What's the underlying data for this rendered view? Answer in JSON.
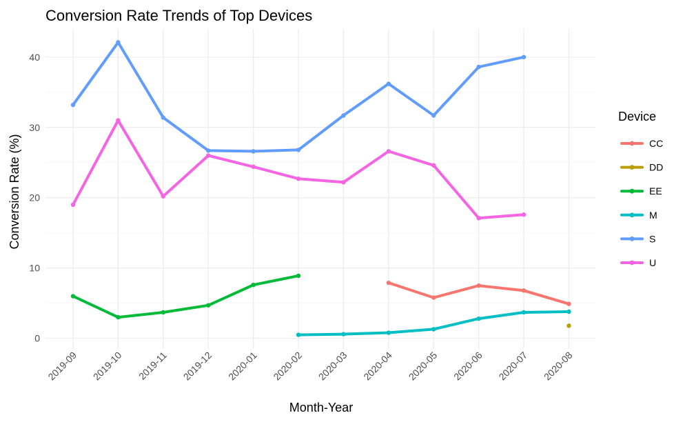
{
  "chart_data": {
    "type": "line",
    "title": "Conversion Rate Trends of Top Devices",
    "xlabel": "Month-Year",
    "ylabel": "Conversion Rate (%)",
    "categories": [
      "2019-09",
      "2019-10",
      "2019-11",
      "2019-12",
      "2020-01",
      "2020-02",
      "2020-03",
      "2020-04",
      "2020-05",
      "2020-06",
      "2020-07",
      "2020-08"
    ],
    "ylim": [
      -1.5,
      44
    ],
    "yticks": [
      0,
      10,
      20,
      30,
      40
    ],
    "grid": true,
    "legend": {
      "title": "Device",
      "position": "right"
    },
    "series": [
      {
        "name": "CC",
        "color": "#F8766D",
        "values": [
          null,
          null,
          null,
          null,
          null,
          null,
          null,
          7.9,
          5.8,
          7.5,
          6.8,
          4.9
        ]
      },
      {
        "name": "DD",
        "color": "#B79F00",
        "values": [
          null,
          null,
          null,
          null,
          null,
          null,
          null,
          null,
          null,
          null,
          null,
          1.8
        ]
      },
      {
        "name": "EE",
        "color": "#00BA38",
        "values": [
          6.0,
          3.0,
          3.7,
          4.7,
          7.6,
          8.9,
          null,
          null,
          null,
          null,
          null,
          null
        ]
      },
      {
        "name": "M",
        "color": "#00BFC4",
        "values": [
          null,
          null,
          null,
          null,
          null,
          0.5,
          0.6,
          0.8,
          1.3,
          2.8,
          3.7,
          3.8
        ]
      },
      {
        "name": "S",
        "color": "#619CFF",
        "values": [
          33.2,
          42.1,
          31.4,
          26.7,
          26.6,
          26.8,
          31.7,
          36.2,
          31.7,
          38.6,
          40.0,
          null
        ]
      },
      {
        "name": "U",
        "color": "#F564E3",
        "values": [
          19.0,
          31.0,
          20.2,
          26.0,
          24.4,
          22.7,
          22.2,
          26.6,
          24.6,
          17.1,
          17.6,
          null
        ]
      }
    ]
  }
}
